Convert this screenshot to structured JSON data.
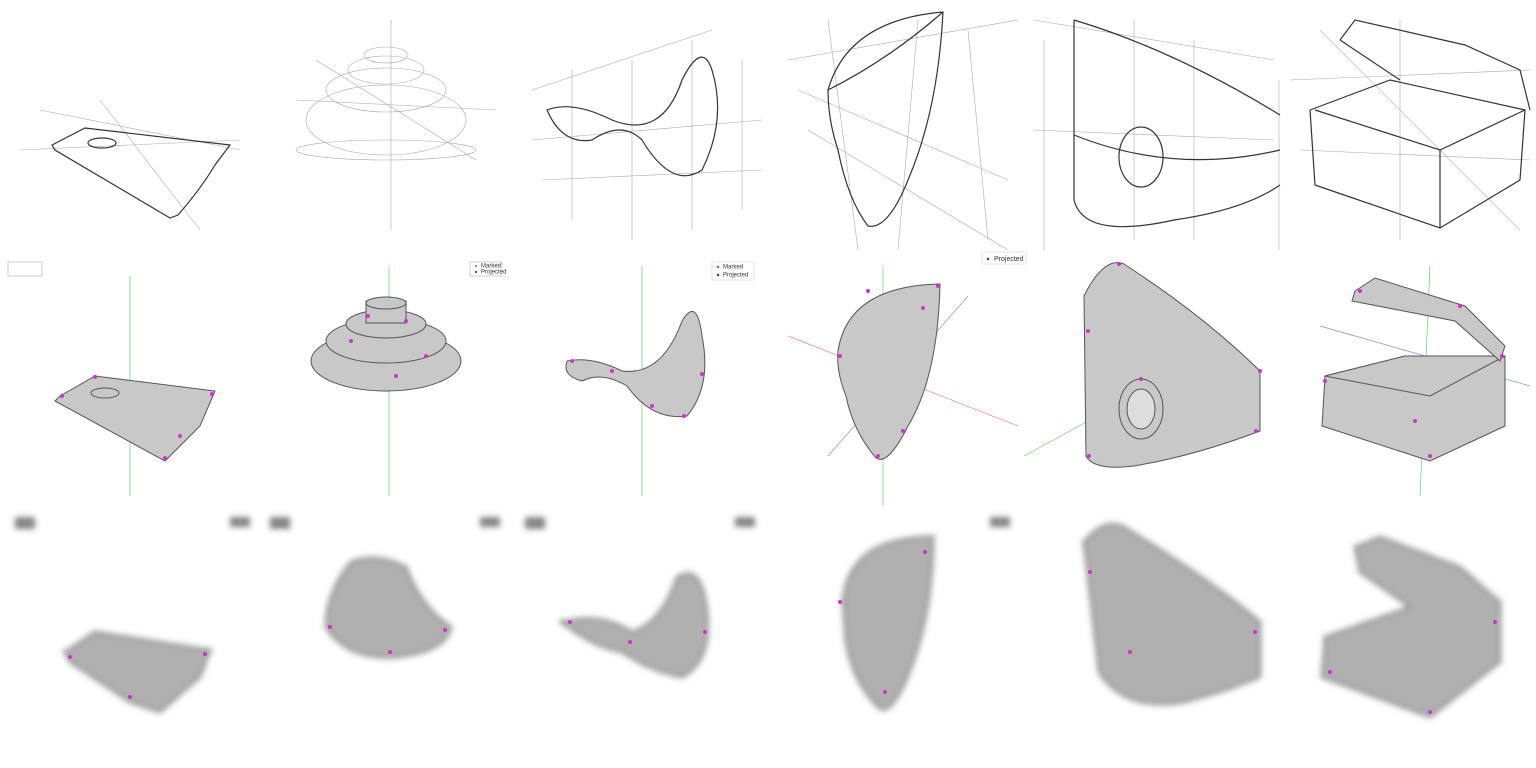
{
  "legends": [
    {
      "items": [
        "Marked",
        "Projected"
      ]
    },
    {
      "items": [
        "Marked",
        "Projected"
      ]
    },
    {
      "items": [
        "Projected"
      ]
    }
  ]
}
